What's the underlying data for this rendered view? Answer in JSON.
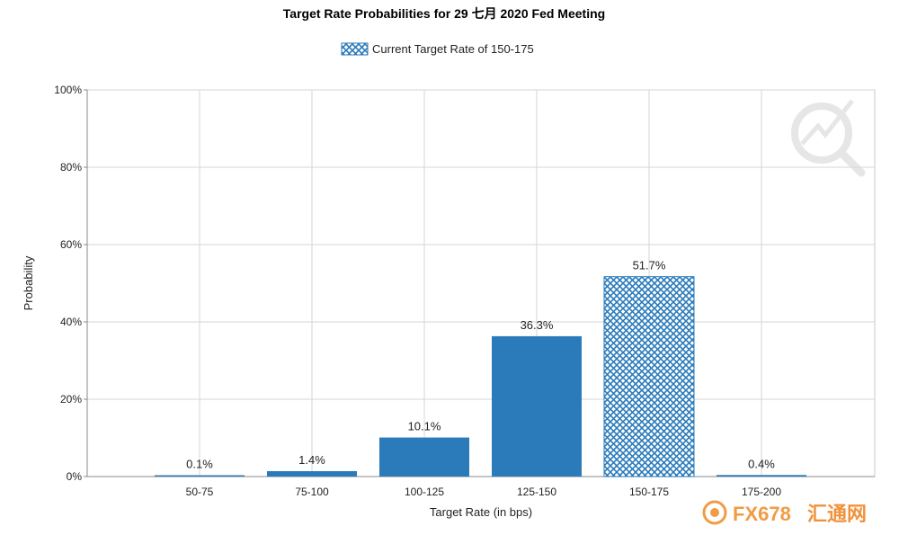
{
  "chart_data": {
    "type": "bar",
    "title": "Target Rate Probabilities for 29 七月 2020 Fed Meeting",
    "xlabel": "Target Rate (in bps)",
    "ylabel": "Probability",
    "categories": [
      "50-75",
      "75-100",
      "100-125",
      "125-150",
      "150-175",
      "175-200"
    ],
    "values": [
      0.1,
      1.4,
      10.1,
      36.3,
      51.7,
      0.4
    ],
    "data_labels": [
      "0.1%",
      "1.4%",
      "10.1%",
      "36.3%",
      "51.7%",
      "0.4%"
    ],
    "ylim": [
      0,
      100
    ],
    "yticks": [
      "0%",
      "20%",
      "40%",
      "60%",
      "80%",
      "100%"
    ],
    "ytick_values": [
      0,
      20,
      40,
      60,
      80,
      100
    ],
    "grid": true,
    "legend": {
      "label": "Current Target Rate of 150-175",
      "placement": "top-center"
    },
    "highlight_category": "150-175",
    "bar_color": "#2b7bba",
    "hatch_color": "#2b7bba"
  },
  "watermark": {
    "brand_prefix": "FX678",
    "brand_cn": "汇通网",
    "brand_color": "#f08a24",
    "brand_cn_color": "#ef7f1a"
  }
}
